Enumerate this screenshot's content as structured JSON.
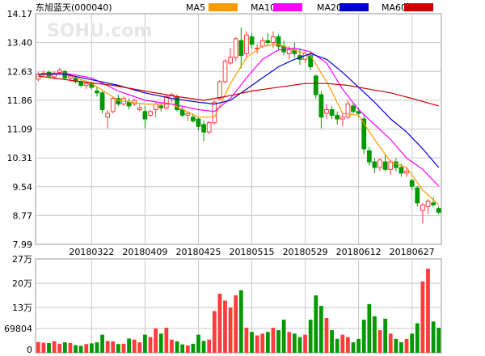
{
  "watermark": "SOHU.com",
  "chart_data": [
    {
      "type": "candlestick",
      "title": "东旭蓝天(000040)",
      "ylim": [
        7.99,
        14.17
      ],
      "y_ticks": [
        "14.17",
        "13.40",
        "12.63",
        "11.86",
        "11.09",
        "10.31",
        "9.54",
        "8.77",
        "7.99"
      ],
      "x_ticks": [
        {
          "label": "20180322",
          "index": 10
        },
        {
          "label": "20180409",
          "index": 20
        },
        {
          "label": "20180425",
          "index": 30
        },
        {
          "label": "20180515",
          "index": 40
        },
        {
          "label": "20180529",
          "index": 50
        },
        {
          "label": "20180612",
          "index": 60
        },
        {
          "label": "20180627",
          "index": 70
        }
      ],
      "colors": {
        "up": "#ff3b3b",
        "down": "#009900",
        "grid": "#c8c8c8",
        "frame": "#999999"
      },
      "legend": [
        {
          "name": "MA5",
          "color": "#ff9900"
        },
        {
          "name": "MA10",
          "color": "#ff00ff"
        },
        {
          "name": "MA20",
          "color": "#0000cc"
        },
        {
          "name": "MA60",
          "color": "#cc0000"
        }
      ],
      "ohlc": [
        [
          12.42,
          12.6,
          12.35,
          12.55
        ],
        [
          12.55,
          12.65,
          12.5,
          12.58
        ],
        [
          12.6,
          12.64,
          12.45,
          12.5
        ],
        [
          12.48,
          12.62,
          12.42,
          12.58
        ],
        [
          12.6,
          12.72,
          12.56,
          12.66
        ],
        [
          12.62,
          12.66,
          12.4,
          12.45
        ],
        [
          12.45,
          12.55,
          12.35,
          12.5
        ],
        [
          12.45,
          12.5,
          12.3,
          12.35
        ],
        [
          12.35,
          12.42,
          12.2,
          12.25
        ],
        [
          12.25,
          12.35,
          12.15,
          12.3
        ],
        [
          12.3,
          12.35,
          12.15,
          12.2
        ],
        [
          12.1,
          12.2,
          11.95,
          12.05
        ],
        [
          12.05,
          12.1,
          11.5,
          11.6
        ],
        [
          11.4,
          11.6,
          11.1,
          11.5
        ],
        [
          11.55,
          11.95,
          11.5,
          11.9
        ],
        [
          11.9,
          12.0,
          11.7,
          11.75
        ],
        [
          11.75,
          11.95,
          11.7,
          11.9
        ],
        [
          11.8,
          11.9,
          11.6,
          11.7
        ],
        [
          11.75,
          11.9,
          11.7,
          11.85
        ],
        [
          11.6,
          11.75,
          11.55,
          11.65
        ],
        [
          11.55,
          11.7,
          11.1,
          11.35
        ],
        [
          11.45,
          11.6,
          11.4,
          11.55
        ],
        [
          11.6,
          11.8,
          11.4,
          11.75
        ],
        [
          11.7,
          11.8,
          11.55,
          11.65
        ],
        [
          11.65,
          12.0,
          11.6,
          11.95
        ],
        [
          11.9,
          12.05,
          11.8,
          12.0
        ],
        [
          11.95,
          12.0,
          11.55,
          11.6
        ],
        [
          11.6,
          11.7,
          11.4,
          11.45
        ],
        [
          11.45,
          11.55,
          11.3,
          11.5
        ],
        [
          11.4,
          11.5,
          11.25,
          11.3
        ],
        [
          11.35,
          11.4,
          11.05,
          11.15
        ],
        [
          11.2,
          11.3,
          10.75,
          11.0
        ],
        [
          11.0,
          11.3,
          10.95,
          11.25
        ],
        [
          11.25,
          11.85,
          11.2,
          11.8
        ],
        [
          11.9,
          12.4,
          11.85,
          12.35
        ],
        [
          12.35,
          12.95,
          12.3,
          12.9
        ],
        [
          12.85,
          13.25,
          12.8,
          13.0
        ],
        [
          13.0,
          13.55,
          12.9,
          13.5
        ],
        [
          13.45,
          13.8,
          12.7,
          13.05
        ],
        [
          13.1,
          13.7,
          13.0,
          13.6
        ],
        [
          13.55,
          13.65,
          13.25,
          13.35
        ],
        [
          13.25,
          13.35,
          13.1,
          13.25
        ],
        [
          13.3,
          13.55,
          13.25,
          13.45
        ],
        [
          13.45,
          13.65,
          13.3,
          13.4
        ],
        [
          13.4,
          13.7,
          13.25,
          13.55
        ],
        [
          13.55,
          13.62,
          13.2,
          13.3
        ],
        [
          13.3,
          13.45,
          13.05,
          13.15
        ],
        [
          13.1,
          13.3,
          12.95,
          13.2
        ],
        [
          13.2,
          13.4,
          13.0,
          13.1
        ],
        [
          13.05,
          13.25,
          12.8,
          12.95
        ],
        [
          12.95,
          13.15,
          12.85,
          13.1
        ],
        [
          13.05,
          13.15,
          12.65,
          12.75
        ],
        [
          12.5,
          12.55,
          11.9,
          12.0
        ],
        [
          12.0,
          12.1,
          11.1,
          11.4
        ],
        [
          11.5,
          11.75,
          11.35,
          11.6
        ],
        [
          11.6,
          11.7,
          11.35,
          11.45
        ],
        [
          11.45,
          11.55,
          11.2,
          11.35
        ],
        [
          11.35,
          11.5,
          11.15,
          11.4
        ],
        [
          11.4,
          11.85,
          11.35,
          11.75
        ],
        [
          11.7,
          11.8,
          11.5,
          11.55
        ],
        [
          11.55,
          11.65,
          11.4,
          11.5
        ],
        [
          11.35,
          11.45,
          10.4,
          10.55
        ],
        [
          10.5,
          10.6,
          10.1,
          10.2
        ],
        [
          10.2,
          10.3,
          9.9,
          10.05
        ],
        [
          10.05,
          10.3,
          9.95,
          10.25
        ],
        [
          10.2,
          10.4,
          9.95,
          10.0
        ],
        [
          10.0,
          10.25,
          9.85,
          10.2
        ],
        [
          10.2,
          10.3,
          9.95,
          10.05
        ],
        [
          10.05,
          10.15,
          9.8,
          9.9
        ],
        [
          9.9,
          10.05,
          9.8,
          9.95
        ],
        [
          9.7,
          9.75,
          9.45,
          9.55
        ],
        [
          9.5,
          9.55,
          9.0,
          9.1
        ],
        [
          8.9,
          9.1,
          8.55,
          9.05
        ],
        [
          9.0,
          9.2,
          8.8,
          9.15
        ],
        [
          9.1,
          9.25,
          9.0,
          9.05
        ],
        [
          8.95,
          9.0,
          8.8,
          8.85
        ]
      ],
      "ma": {
        "MA5": [
          [
            0,
            12.52
          ],
          [
            5,
            12.58
          ],
          [
            10,
            12.3
          ],
          [
            15,
            11.85
          ],
          [
            20,
            11.75
          ],
          [
            25,
            11.75
          ],
          [
            30,
            11.4
          ],
          [
            33,
            11.4
          ],
          [
            36,
            12.3
          ],
          [
            39,
            13.0
          ],
          [
            42,
            13.3
          ],
          [
            45,
            13.35
          ],
          [
            48,
            13.2
          ],
          [
            51,
            13.05
          ],
          [
            54,
            12.35
          ],
          [
            57,
            11.5
          ],
          [
            60,
            11.45
          ],
          [
            63,
            10.8
          ],
          [
            66,
            10.2
          ],
          [
            69,
            10.05
          ],
          [
            72,
            9.45
          ],
          [
            75,
            9.05
          ]
        ],
        "MA10": [
          [
            0,
            12.55
          ],
          [
            5,
            12.58
          ],
          [
            10,
            12.45
          ],
          [
            15,
            12.1
          ],
          [
            20,
            11.85
          ],
          [
            25,
            11.75
          ],
          [
            30,
            11.6
          ],
          [
            33,
            11.55
          ],
          [
            36,
            11.9
          ],
          [
            39,
            12.45
          ],
          [
            42,
            12.95
          ],
          [
            45,
            13.2
          ],
          [
            48,
            13.25
          ],
          [
            51,
            13.15
          ],
          [
            54,
            12.85
          ],
          [
            57,
            12.15
          ],
          [
            60,
            11.6
          ],
          [
            63,
            11.2
          ],
          [
            66,
            10.8
          ],
          [
            69,
            10.3
          ],
          [
            72,
            10.0
          ],
          [
            75,
            9.55
          ]
        ],
        "MA20": [
          [
            0,
            12.55
          ],
          [
            5,
            12.55
          ],
          [
            10,
            12.4
          ],
          [
            15,
            12.25
          ],
          [
            20,
            12.05
          ],
          [
            25,
            11.9
          ],
          [
            30,
            11.8
          ],
          [
            33,
            11.75
          ],
          [
            36,
            11.85
          ],
          [
            39,
            12.15
          ],
          [
            42,
            12.45
          ],
          [
            45,
            12.75
          ],
          [
            48,
            12.95
          ],
          [
            51,
            13.1
          ],
          [
            54,
            12.95
          ],
          [
            57,
            12.6
          ],
          [
            60,
            12.2
          ],
          [
            63,
            11.8
          ],
          [
            66,
            11.35
          ],
          [
            69,
            11.0
          ],
          [
            72,
            10.55
          ],
          [
            75,
            10.05
          ]
        ],
        "MA60": [
          [
            0,
            12.5
          ],
          [
            8,
            12.35
          ],
          [
            14,
            12.25
          ],
          [
            20,
            12.1
          ],
          [
            26,
            11.95
          ],
          [
            31,
            11.85
          ],
          [
            35,
            11.95
          ],
          [
            40,
            12.1
          ],
          [
            45,
            12.2
          ],
          [
            50,
            12.3
          ],
          [
            54,
            12.3
          ],
          [
            58,
            12.25
          ],
          [
            62,
            12.15
          ],
          [
            66,
            12.05
          ],
          [
            70,
            11.9
          ],
          [
            75,
            11.7
          ]
        ]
      }
    },
    {
      "type": "bar",
      "name": "volume",
      "y_ticks": [
        "27万",
        "20万",
        "13万",
        "69804",
        "0"
      ],
      "ylim": [
        0,
        270000
      ],
      "values": [
        31000,
        29000,
        28000,
        33000,
        26000,
        30000,
        28000,
        22000,
        20000,
        25000,
        27000,
        30000,
        52000,
        34000,
        33000,
        25000,
        26000,
        41000,
        38000,
        30000,
        52000,
        45000,
        70000,
        55000,
        72000,
        38000,
        33000,
        24000,
        21000,
        26000,
        52000,
        34000,
        38000,
        120000,
        170000,
        150000,
        130000,
        165000,
        180000,
        72000,
        60000,
        50000,
        55000,
        60000,
        72000,
        65000,
        95000,
        60000,
        55000,
        45000,
        52000,
        95000,
        165000,
        135000,
        100000,
        65000,
        40000,
        52000,
        45000,
        30000,
        40000,
        95000,
        140000,
        105000,
        65000,
        98000,
        55000,
        40000,
        30000,
        40000,
        55000,
        85000,
        205000,
        242000,
        90000,
        72000
      ]
    }
  ]
}
